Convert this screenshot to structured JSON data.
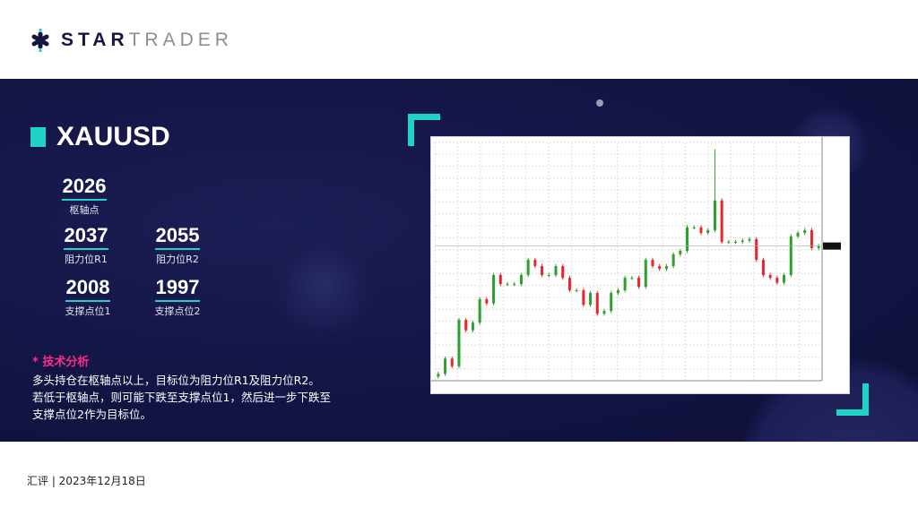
{
  "brand": {
    "name_bold": "STAR",
    "name_light": "TRADER"
  },
  "symbol": "XAUUSD",
  "levels": {
    "pivot": {
      "value": "2026",
      "label": "枢轴点"
    },
    "r1": {
      "value": "2037",
      "label": "阻力位R1"
    },
    "r2": {
      "value": "2055",
      "label": "阻力位R2"
    },
    "s1": {
      "value": "2008",
      "label": "支撑点位1"
    },
    "s2": {
      "value": "1997",
      "label": "支撑点位2"
    }
  },
  "analysis": {
    "heading": "* 技术分析",
    "lines": [
      "多头持仓在枢轴点以上，目标位为阻力位R1及阻力位R2。",
      "若低于枢轴点，则可能下跌至支撑点位1，然后进一步下跌至",
      "支撑点位2作为目标位。"
    ]
  },
  "footer": "汇评 | 2023年12月18日",
  "colors": {
    "accent": "#1fd3c6",
    "highlight": "#ff2a8a",
    "band": "#121443",
    "up": "#2ca02c",
    "down": "#e8252a"
  },
  "chart_data": {
    "type": "candlestick",
    "grid": true,
    "ylim": [
      1810,
      2155
    ],
    "close": [
      1820,
      1842,
      1831,
      1898,
      1883,
      1894,
      1928,
      1922,
      1963,
      1950,
      1950,
      1950,
      1963,
      1985,
      1976,
      1963,
      1963,
      1976,
      1959,
      1941,
      1941,
      1920,
      1937,
      1907,
      1911,
      1937,
      1941,
      1959,
      1959,
      1946,
      1985,
      1976,
      1972,
      1976,
      1993,
      1998,
      2032,
      2032,
      2024,
      2028,
      2071,
      2011,
      2011,
      2011,
      2013,
      2015,
      1985,
      1963,
      1959,
      1952,
      1963,
      2019,
      2024,
      2028,
      2002,
      2005
    ],
    "spike_high": {
      "index": 40,
      "value": 2145
    }
  }
}
